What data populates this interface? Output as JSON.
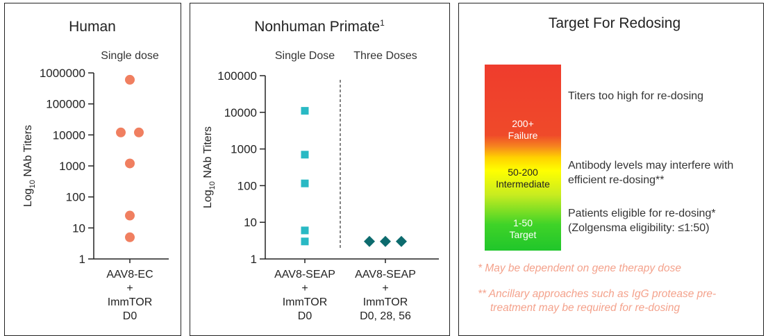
{
  "panels": {
    "human": {
      "title": "Human"
    },
    "nhp": {
      "title": "Nonhuman Primate",
      "title_sup": "1"
    },
    "redose": {
      "title": "Target For Redosing",
      "bar_labels": [
        {
          "l1": "200+",
          "l2": "Failure"
        },
        {
          "l1": "50-200",
          "l2": "Intermediate"
        },
        {
          "l1": "1-50",
          "l2": "Target"
        }
      ],
      "descriptions": [
        {
          "line1": "Titers too high for re-dosing",
          "line2": ""
        },
        {
          "line1": "Antibody levels may interfere with",
          "line2": "efficient re-dosing**"
        },
        {
          "line1": "Patients eligible for re-dosing*",
          "line2": "(Zolgensma eligibility: ≤1:50)"
        }
      ],
      "notes": [
        {
          "line1": "*  May be dependent on gene therapy dose",
          "line2": ""
        },
        {
          "line1": "** Ancillary approaches such as IgG protease pre-",
          "line2": "treatment may be required for re-dosing"
        }
      ],
      "colors": {
        "high": "#ef3c2d",
        "mid": "#ffff00",
        "low": "#20c62b",
        "note": "#f4a28c"
      }
    }
  },
  "chart_data": [
    {
      "type": "scatter",
      "title": "Human",
      "ylabel_main": "Log",
      "ylabel_sub": "10",
      "ylabel_rest": " NAb Titers",
      "yscale": "log",
      "ylim": [
        1,
        1000000
      ],
      "yticks": [
        "1",
        "10",
        "100",
        "1000",
        "10000",
        "100000",
        "1000000"
      ],
      "groups": [
        {
          "header": "Single dose",
          "xlabel_lines": [
            "AAV8-EC",
            "+",
            "ImmTOR",
            "D0"
          ]
        }
      ],
      "series": [
        {
          "marker": "circle",
          "color": "#f07f60",
          "points": [
            {
              "g": 0,
              "dx": 0,
              "y": 600000
            },
            {
              "g": 0,
              "dx": -1,
              "y": 12000
            },
            {
              "g": 0,
              "dx": 1,
              "y": 12000
            },
            {
              "g": 0,
              "dx": 0,
              "y": 1200
            },
            {
              "g": 0,
              "dx": 0,
              "y": 25
            },
            {
              "g": 0,
              "dx": 0,
              "y": 5
            }
          ]
        }
      ]
    },
    {
      "type": "scatter",
      "title": "Nonhuman Primate",
      "ylabel_main": "Log",
      "ylabel_sub": "10",
      "ylabel_rest": " NAb Titers",
      "yscale": "log",
      "ylim": [
        1,
        100000
      ],
      "yticks": [
        "1",
        "10",
        "100",
        "1000",
        "10000",
        "100000"
      ],
      "groups": [
        {
          "header": "Single Dose",
          "xlabel_lines": [
            "AAV8-SEAP",
            "+",
            "ImmTOR",
            "D0"
          ]
        },
        {
          "header": "Three Doses",
          "xlabel_lines": [
            "AAV8-SEAP",
            "+",
            "ImmTOR",
            "D0, 28, 56"
          ]
        }
      ],
      "series": [
        {
          "marker": "square",
          "color": "#29b9c4",
          "points": [
            {
              "g": 0,
              "dx": 0,
              "y": 11000
            },
            {
              "g": 0,
              "dx": 0,
              "y": 700
            },
            {
              "g": 0,
              "dx": 0,
              "y": 115
            },
            {
              "g": 0,
              "dx": 0,
              "y": 6
            },
            {
              "g": 0,
              "dx": 0,
              "y": 3
            }
          ]
        },
        {
          "marker": "diamond",
          "color": "#0d6b6e",
          "points": [
            {
              "g": 1,
              "dx": -1,
              "y": 3
            },
            {
              "g": 1,
              "dx": 0,
              "y": 3
            },
            {
              "g": 1,
              "dx": 1,
              "y": 3
            }
          ]
        }
      ]
    }
  ]
}
